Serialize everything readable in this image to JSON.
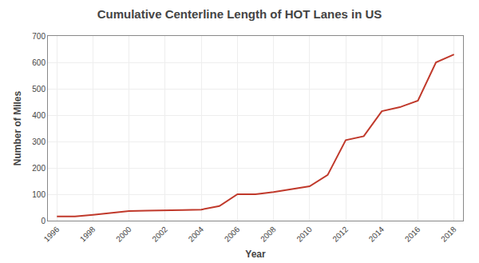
{
  "chart_data": {
    "type": "line",
    "title": "Cumulative Centerline Length of HOT Lanes in US",
    "xlabel": "Year",
    "ylabel": "Number of Miles",
    "x": [
      1996,
      1997,
      1998,
      1999,
      2000,
      2001,
      2002,
      2003,
      2004,
      2005,
      2006,
      2007,
      2008,
      2009,
      2010,
      2011,
      2012,
      2013,
      2014,
      2015,
      2016,
      2017,
      2018
    ],
    "values": [
      16,
      16,
      22,
      28,
      36,
      38,
      38,
      40,
      42,
      55,
      100,
      100,
      108,
      120,
      130,
      173,
      305,
      320,
      415,
      430,
      455,
      600,
      630
    ],
    "color": "#c0392b",
    "xlim": [
      1995.5,
      2018.5
    ],
    "xticks": [
      1996,
      1998,
      2000,
      2002,
      2004,
      2006,
      2008,
      2010,
      2012,
      2014,
      2016,
      2018
    ],
    "ylim": [
      0,
      700
    ],
    "yticks": [
      0,
      100,
      200,
      300,
      400,
      500,
      600,
      700
    ],
    "grid": true
  }
}
